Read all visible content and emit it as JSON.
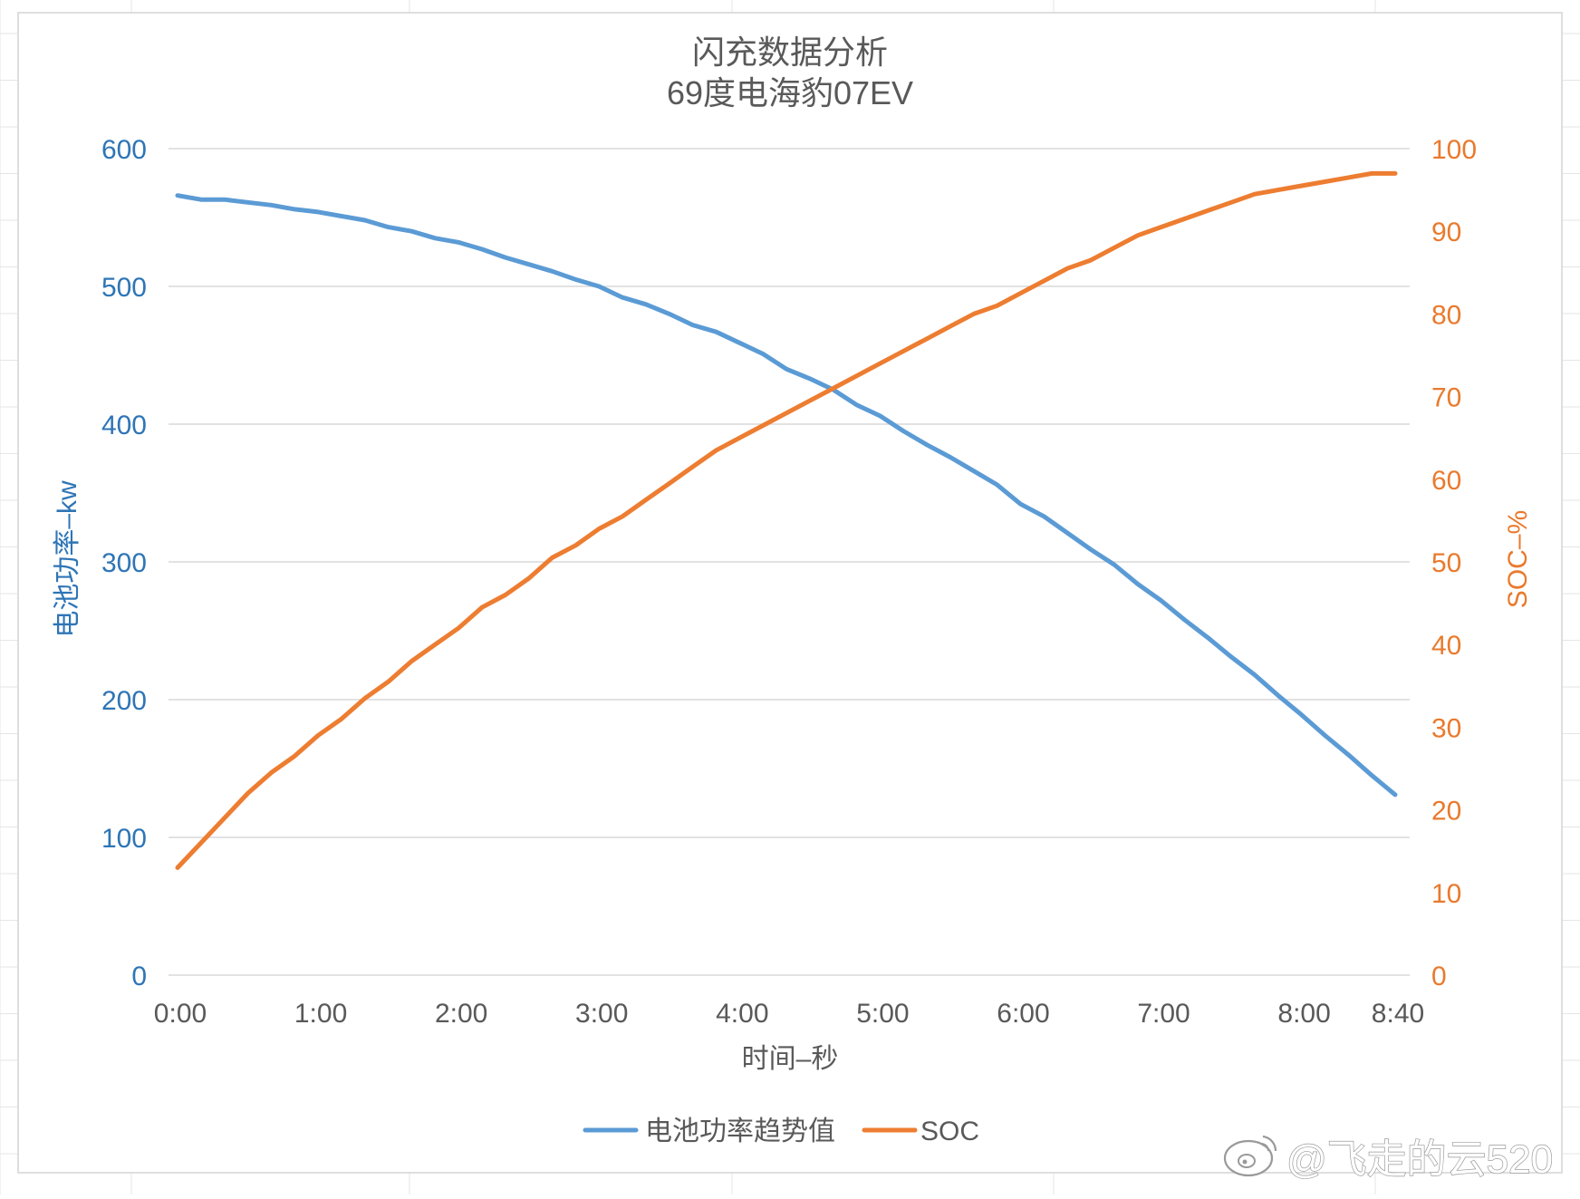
{
  "chart_data": {
    "type": "line",
    "title": "闪充数据分析",
    "subtitle": "69度电海豹07EV",
    "xlabel": "时间–秒",
    "ylabel_left": "电池功率–kw",
    "ylabel_right": "SOC–%",
    "x_unit": "seconds",
    "xlim": [
      0,
      520
    ],
    "ylim_left": [
      0,
      600
    ],
    "ylim_right": [
      0,
      100
    ],
    "yticks_left": [
      "0",
      "100",
      "200",
      "300",
      "400",
      "500",
      "600"
    ],
    "yticks_right": [
      "0",
      "10",
      "20",
      "30",
      "40",
      "50",
      "60",
      "70",
      "80",
      "90",
      "100"
    ],
    "x_tick_labels": [
      {
        "t": 0,
        "label": "0:00"
      },
      {
        "t": 60,
        "label": "1:00"
      },
      {
        "t": 120,
        "label": "2:00"
      },
      {
        "t": 180,
        "label": "3:00"
      },
      {
        "t": 240,
        "label": "4:00"
      },
      {
        "t": 300,
        "label": "5:00"
      },
      {
        "t": 360,
        "label": "6:00"
      },
      {
        "t": 420,
        "label": "7:00"
      },
      {
        "t": 480,
        "label": "8:00"
      },
      {
        "t": 520,
        "label": "8:40"
      }
    ],
    "grid": true,
    "legend_position": "bottom",
    "x": [
      0,
      10,
      20,
      30,
      40,
      50,
      60,
      70,
      80,
      90,
      100,
      110,
      120,
      130,
      140,
      150,
      160,
      170,
      180,
      190,
      200,
      210,
      220,
      230,
      240,
      250,
      260,
      270,
      280,
      290,
      300,
      310,
      320,
      330,
      340,
      350,
      360,
      370,
      380,
      390,
      400,
      410,
      420,
      430,
      440,
      450,
      460,
      470,
      480,
      490,
      500,
      510,
      520
    ],
    "series": [
      {
        "name": "电池功率趋势值",
        "axis": "left",
        "color": "#5b9bd5",
        "values": [
          566,
          563,
          563,
          561,
          559,
          556,
          554,
          551,
          548,
          543,
          540,
          535,
          532,
          527,
          521,
          516,
          511,
          505,
          500,
          492,
          487,
          480,
          472,
          467,
          459,
          451,
          440,
          433,
          425,
          414,
          406,
          395,
          385,
          376,
          366,
          356,
          342,
          333,
          321,
          309,
          298,
          284,
          272,
          258,
          245,
          231,
          218,
          203,
          189,
          174,
          160,
          145,
          131
        ]
      },
      {
        "name": "SOC",
        "axis": "right",
        "color": "#ed7d31",
        "values": [
          13,
          16,
          19,
          22,
          24.5,
          26.5,
          29,
          31,
          33.5,
          35.5,
          38,
          40,
          42,
          44.5,
          46,
          48,
          50.5,
          52,
          54,
          55.5,
          57.5,
          59.5,
          61.5,
          63.5,
          65,
          66.5,
          68,
          69.5,
          71,
          72.5,
          74,
          75.5,
          77,
          78.5,
          80,
          81,
          82.5,
          84,
          85.5,
          86.5,
          88,
          89.5,
          90.5,
          91.5,
          92.5,
          93.5,
          94.5,
          95,
          95.5,
          96,
          96.5,
          97,
          97
        ]
      }
    ]
  },
  "watermark": {
    "text": "@飞走的云520",
    "icon": "weibo-icon"
  }
}
